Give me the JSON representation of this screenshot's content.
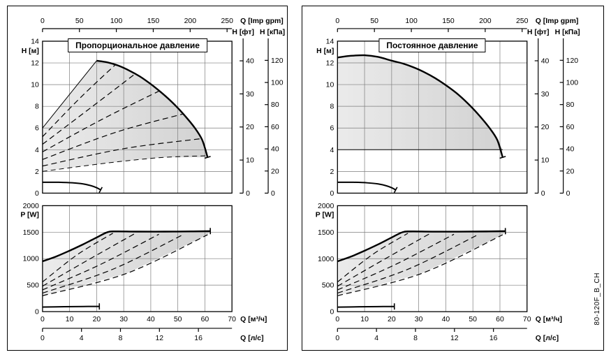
{
  "page": {
    "background": "#ffffff"
  },
  "side_label": "80-120F_B_CH",
  "colors": {
    "curve": "#000000",
    "grid": "#7d7d7d",
    "shade_from": "#ebebeb",
    "shade_to": "#d2d2d2"
  },
  "chart_data": [
    {
      "type": "line",
      "title": "Пропорциональное давление",
      "shade_from": "#ebebeb",
      "shade_to": "#d2d2d2",
      "axes": {
        "top": {
          "label": "Q [Imp gpm]",
          "ticks": [
            0,
            50,
            100,
            150,
            200,
            250
          ]
        },
        "h": {
          "label": "H [м]",
          "ticks": [
            0,
            2,
            4,
            6,
            8,
            10,
            12,
            14
          ],
          "range": [
            0,
            14
          ]
        },
        "ft": {
          "label": "H [фт]",
          "ticks": [
            0,
            10,
            20,
            30,
            40
          ]
        },
        "kpa": {
          "label": "H [кПа]",
          "ticks": [
            0,
            20,
            40,
            60,
            80,
            100,
            120
          ]
        },
        "p": {
          "label": "P [W]",
          "ticks": [
            0,
            500,
            1000,
            1500,
            2000
          ],
          "range": [
            0,
            2000
          ]
        },
        "q": {
          "label": "Q [м³/ч]",
          "ticks": [
            0,
            10,
            20,
            30,
            40,
            50,
            60,
            70
          ],
          "range": [
            0,
            70
          ]
        },
        "ls": {
          "label": "Q [л/с]",
          "ticks": [
            0,
            4,
            8,
            12,
            16
          ]
        }
      },
      "upper": {
        "region": [
          [
            0,
            6
          ],
          [
            20,
            12.2
          ],
          [
            28,
            11.75
          ],
          [
            36,
            10.75
          ],
          [
            44,
            9.25
          ],
          [
            52,
            7.3
          ],
          [
            58,
            5.5
          ],
          [
            61,
            3.3
          ],
          [
            45,
            3.3
          ],
          [
            30,
            2.95
          ],
          [
            15,
            2.5
          ],
          [
            0,
            2
          ]
        ],
        "max_curve": [
          [
            20,
            12.2
          ],
          [
            24,
            12.05
          ],
          [
            28,
            11.75
          ],
          [
            32,
            11.3
          ],
          [
            36,
            10.75
          ],
          [
            40,
            10.05
          ],
          [
            44,
            9.25
          ],
          [
            48,
            8.35
          ],
          [
            52,
            7.3
          ],
          [
            56,
            6.1
          ],
          [
            59,
            4.9
          ],
          [
            61,
            3.3
          ]
        ],
        "dashed": [
          [
            [
              0,
              5.2
            ],
            [
              14,
              8.8
            ],
            [
              27,
              11.85
            ]
          ],
          [
            [
              0,
              4.5
            ],
            [
              18,
              7.9
            ],
            [
              34,
              10.95
            ]
          ],
          [
            [
              0,
              3.8
            ],
            [
              22,
              6.8
            ],
            [
              43,
              9.4
            ]
          ],
          [
            [
              0,
              3.1
            ],
            [
              27,
              5.6
            ],
            [
              52,
              7.3
            ]
          ],
          [
            [
              0,
              2.5
            ],
            [
              30,
              4.1
            ],
            [
              58,
              5.0
            ]
          ]
        ],
        "edges": [
          {
            "style": "solid",
            "points": [
              [
                0,
                6
              ],
              [
                20,
                12.2
              ]
            ]
          },
          {
            "style": "dashed",
            "points": [
              [
                0,
                2
              ],
              [
                15,
                2.5
              ],
              [
                30,
                2.95
              ],
              [
                45,
                3.3
              ],
              [
                61,
                3.45
              ]
            ]
          }
        ],
        "min_curve": [
          [
            0,
            1.0
          ],
          [
            6,
            1.0
          ],
          [
            11,
            0.95
          ],
          [
            15,
            0.85
          ],
          [
            18,
            0.68
          ],
          [
            20,
            0.5
          ],
          [
            21.5,
            0.3
          ]
        ]
      },
      "lower": {
        "region": [
          [
            0,
            950
          ],
          [
            5,
            1040
          ],
          [
            10,
            1150
          ],
          [
            15,
            1270
          ],
          [
            20,
            1400
          ],
          [
            24,
            1500
          ],
          [
            35,
            1510
          ],
          [
            45,
            1510
          ],
          [
            55,
            1515
          ],
          [
            62,
            1520
          ],
          [
            61,
            1450
          ],
          [
            31,
            720
          ],
          [
            0,
            300
          ]
        ],
        "max_curve": [
          [
            0,
            950
          ],
          [
            5,
            1040
          ],
          [
            10,
            1150
          ],
          [
            15,
            1270
          ],
          [
            20,
            1400
          ],
          [
            24,
            1500
          ],
          [
            27,
            1515
          ],
          [
            35,
            1510
          ],
          [
            45,
            1510
          ],
          [
            55,
            1515
          ],
          [
            62,
            1520
          ]
        ],
        "dashed": [
          [
            [
              0,
              560
            ],
            [
              13,
              1080
            ],
            [
              26,
              1480
            ]
          ],
          [
            [
              0,
              480
            ],
            [
              17,
              980
            ],
            [
              34,
              1470
            ]
          ],
          [
            [
              0,
              410
            ],
            [
              21,
              880
            ],
            [
              43,
              1460
            ]
          ],
          [
            [
              0,
              350
            ],
            [
              26,
              800
            ],
            [
              52,
              1455
            ]
          ],
          [
            [
              0,
              300
            ],
            [
              31,
              720
            ],
            [
              61,
              1450
            ]
          ]
        ],
        "edges": [],
        "min_curve": [
          [
            0,
            85
          ],
          [
            8,
            92
          ],
          [
            15,
            96
          ],
          [
            21,
            98
          ]
        ]
      }
    },
    {
      "type": "line",
      "title": "Постоянное давление",
      "shade_from": "#ebebeb",
      "shade_to": "#d2d2d2",
      "axes": {
        "top": {
          "label": "Q [Imp gpm]",
          "ticks": [
            0,
            50,
            100,
            150,
            200,
            250
          ]
        },
        "h": {
          "label": "H [м]",
          "ticks": [
            0,
            2,
            4,
            6,
            8,
            10,
            12,
            14
          ],
          "range": [
            0,
            14
          ]
        },
        "ft": {
          "label": "H [фт]",
          "ticks": [
            0,
            10,
            20,
            30,
            40
          ]
        },
        "kpa": {
          "label": "H [кПа]",
          "ticks": [
            0,
            20,
            40,
            60,
            80,
            100,
            120
          ]
        },
        "p": {
          "label": "P [W]",
          "ticks": [
            0,
            500,
            1000,
            1500,
            2000
          ],
          "range": [
            0,
            2000
          ]
        },
        "q": {
          "label": "Q [м³/ч]",
          "ticks": [
            0,
            10,
            20,
            30,
            40,
            50,
            60,
            70
          ],
          "range": [
            0,
            70
          ]
        },
        "ls": {
          "label": "Q [л/с]",
          "ticks": [
            0,
            4,
            8,
            12,
            16
          ]
        }
      },
      "upper": {
        "region": [
          [
            0,
            12.5
          ],
          [
            5,
            12.65
          ],
          [
            10,
            12.7
          ],
          [
            15,
            12.55
          ],
          [
            20,
            12.2
          ],
          [
            28,
            11.6
          ],
          [
            36,
            10.6
          ],
          [
            44,
            9.2
          ],
          [
            52,
            7.25
          ],
          [
            57,
            5.7
          ],
          [
            60,
            4.5
          ],
          [
            61,
            4.0
          ],
          [
            0,
            4.0
          ]
        ],
        "max_curve": [
          [
            0,
            12.5
          ],
          [
            5,
            12.65
          ],
          [
            10,
            12.7
          ],
          [
            15,
            12.55
          ],
          [
            20,
            12.2
          ],
          [
            24,
            11.95
          ],
          [
            28,
            11.6
          ],
          [
            32,
            11.15
          ],
          [
            36,
            10.6
          ],
          [
            40,
            9.95
          ],
          [
            44,
            9.2
          ],
          [
            48,
            8.3
          ],
          [
            52,
            7.25
          ],
          [
            56,
            6.05
          ],
          [
            59,
            4.9
          ],
          [
            61,
            3.3
          ]
        ],
        "dashed": [],
        "edges": [
          {
            "style": "solid",
            "points": [
              [
                0,
                4
              ],
              [
                61,
                4
              ]
            ]
          }
        ],
        "min_curve": [
          [
            0,
            1.0
          ],
          [
            6,
            1.0
          ],
          [
            11,
            0.95
          ],
          [
            15,
            0.85
          ],
          [
            18,
            0.68
          ],
          [
            20,
            0.5
          ],
          [
            21.5,
            0.3
          ]
        ]
      },
      "lower": {
        "region": [
          [
            0,
            950
          ],
          [
            5,
            1040
          ],
          [
            10,
            1150
          ],
          [
            15,
            1270
          ],
          [
            20,
            1400
          ],
          [
            24,
            1500
          ],
          [
            35,
            1510
          ],
          [
            45,
            1510
          ],
          [
            55,
            1515
          ],
          [
            62,
            1520
          ],
          [
            61,
            1450
          ],
          [
            31,
            720
          ],
          [
            0,
            300
          ]
        ],
        "max_curve": [
          [
            0,
            950
          ],
          [
            5,
            1040
          ],
          [
            10,
            1150
          ],
          [
            15,
            1270
          ],
          [
            20,
            1400
          ],
          [
            24,
            1500
          ],
          [
            27,
            1515
          ],
          [
            35,
            1510
          ],
          [
            45,
            1510
          ],
          [
            55,
            1515
          ],
          [
            62,
            1520
          ]
        ],
        "dashed": [
          [
            [
              0,
              560
            ],
            [
              13,
              1080
            ],
            [
              26,
              1480
            ]
          ],
          [
            [
              0,
              480
            ],
            [
              17,
              980
            ],
            [
              34,
              1470
            ]
          ],
          [
            [
              0,
              410
            ],
            [
              21,
              880
            ],
            [
              43,
              1460
            ]
          ],
          [
            [
              0,
              350
            ],
            [
              26,
              800
            ],
            [
              52,
              1455
            ]
          ],
          [
            [
              0,
              300
            ],
            [
              31,
              720
            ],
            [
              61,
              1450
            ]
          ]
        ],
        "edges": [],
        "min_curve": [
          [
            0,
            85
          ],
          [
            8,
            92
          ],
          [
            15,
            96
          ],
          [
            21,
            98
          ]
        ]
      }
    }
  ]
}
